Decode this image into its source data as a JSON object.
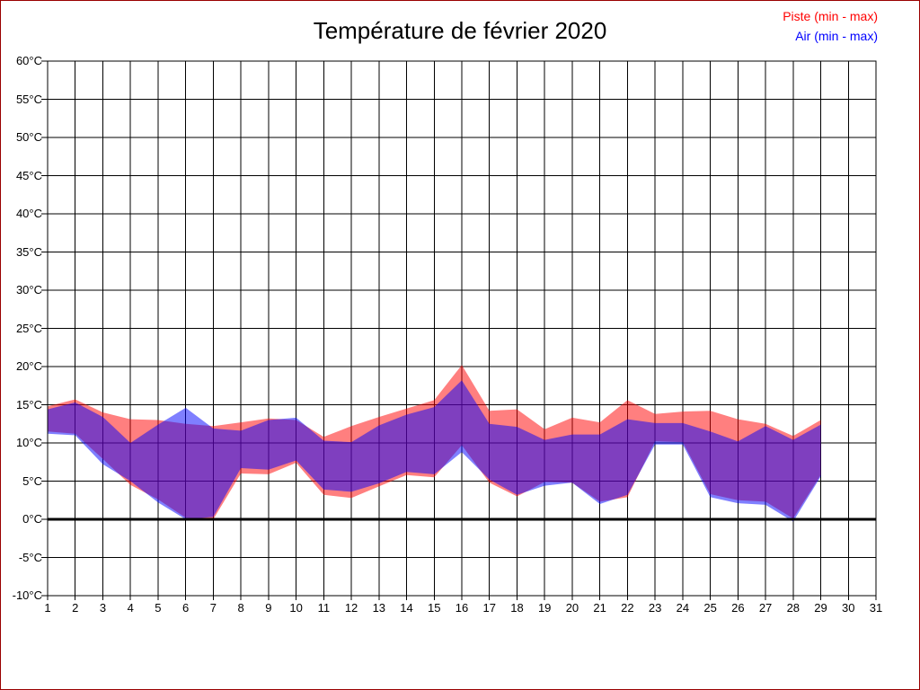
{
  "title": "Température de février 2020",
  "legend": [
    {
      "id": "piste",
      "label": "Piste (min - max)",
      "color": "#ff0000"
    },
    {
      "id": "air",
      "label": "Air (min - max)",
      "color": "#0000ff"
    }
  ],
  "chart_data": {
    "type": "area",
    "subtype": "min-max-band",
    "title": "Température de février 2020",
    "xlabel": "",
    "ylabel": "",
    "xlim": [
      1,
      31
    ],
    "ylim": [
      -10,
      60
    ],
    "grid": true,
    "zero_line_bold": true,
    "legend_position": "top-right",
    "x_ticks": [
      1,
      2,
      3,
      4,
      5,
      6,
      7,
      8,
      9,
      10,
      11,
      12,
      13,
      14,
      15,
      16,
      17,
      18,
      19,
      20,
      21,
      22,
      23,
      24,
      25,
      26,
      27,
      28,
      29,
      30,
      31
    ],
    "y_ticks": [
      {
        "value": 60,
        "label": "60°C"
      },
      {
        "value": 55,
        "label": "55°C"
      },
      {
        "value": 50,
        "label": "50°C"
      },
      {
        "value": 45,
        "label": "45°C"
      },
      {
        "value": 40,
        "label": "40°C"
      },
      {
        "value": 35,
        "label": "35°C"
      },
      {
        "value": 30,
        "label": "30°C"
      },
      {
        "value": 25,
        "label": "25°C"
      },
      {
        "value": 20,
        "label": "20°C"
      },
      {
        "value": 15,
        "label": "15°C"
      },
      {
        "value": 10,
        "label": "10°C"
      },
      {
        "value": 5,
        "label": "5°C"
      },
      {
        "value": 0,
        "label": "0°C"
      },
      {
        "value": -5,
        "label": "-5°C"
      },
      {
        "value": -10,
        "label": "-10°C"
      }
    ],
    "days": [
      1,
      2,
      3,
      4,
      5,
      6,
      7,
      8,
      9,
      10,
      11,
      12,
      13,
      14,
      15,
      16,
      17,
      18,
      19,
      20,
      21,
      22,
      23,
      24,
      25,
      26,
      27,
      28,
      29
    ],
    "series": [
      {
        "name": "Piste (min - max)",
        "fill": "rgba(255,0,0,0.5)",
        "min": [
          11.5,
          11.2,
          7.9,
          4.5,
          2.6,
          0.2,
          0.0,
          6.0,
          5.9,
          7.4,
          3.2,
          2.8,
          4.3,
          5.8,
          5.5,
          9.7,
          4.8,
          3.0,
          4.9,
          4.8,
          2.3,
          2.9,
          10.2,
          10.1,
          3.3,
          2.5,
          2.3,
          0.1,
          5.8
        ],
        "max": [
          14.8,
          15.7,
          14.0,
          13.1,
          13.0,
          12.5,
          12.2,
          12.7,
          13.2,
          13.0,
          10.8,
          12.2,
          13.4,
          14.5,
          15.6,
          20.2,
          14.2,
          14.4,
          11.8,
          13.3,
          12.7,
          15.6,
          13.8,
          14.1,
          14.2,
          13.1,
          12.5,
          10.9,
          13.0
        ]
      },
      {
        "name": "Air (min - max)",
        "fill": "rgba(0,0,255,0.5)",
        "min": [
          11.2,
          11.0,
          7.2,
          5.0,
          2.2,
          0.0,
          0.3,
          6.7,
          6.5,
          7.7,
          3.9,
          3.6,
          4.7,
          6.2,
          5.9,
          8.8,
          5.2,
          3.2,
          4.4,
          4.8,
          2.0,
          3.2,
          9.8,
          9.8,
          2.9,
          2.1,
          1.9,
          -0.3,
          5.6
        ],
        "max": [
          14.4,
          15.3,
          13.4,
          10.0,
          12.4,
          14.6,
          11.9,
          11.6,
          13.0,
          13.3,
          10.3,
          10.1,
          12.3,
          13.7,
          14.7,
          18.2,
          12.5,
          12.1,
          10.4,
          11.1,
          11.1,
          13.1,
          12.6,
          12.6,
          11.5,
          10.2,
          12.2,
          10.4,
          12.4
        ]
      }
    ]
  }
}
